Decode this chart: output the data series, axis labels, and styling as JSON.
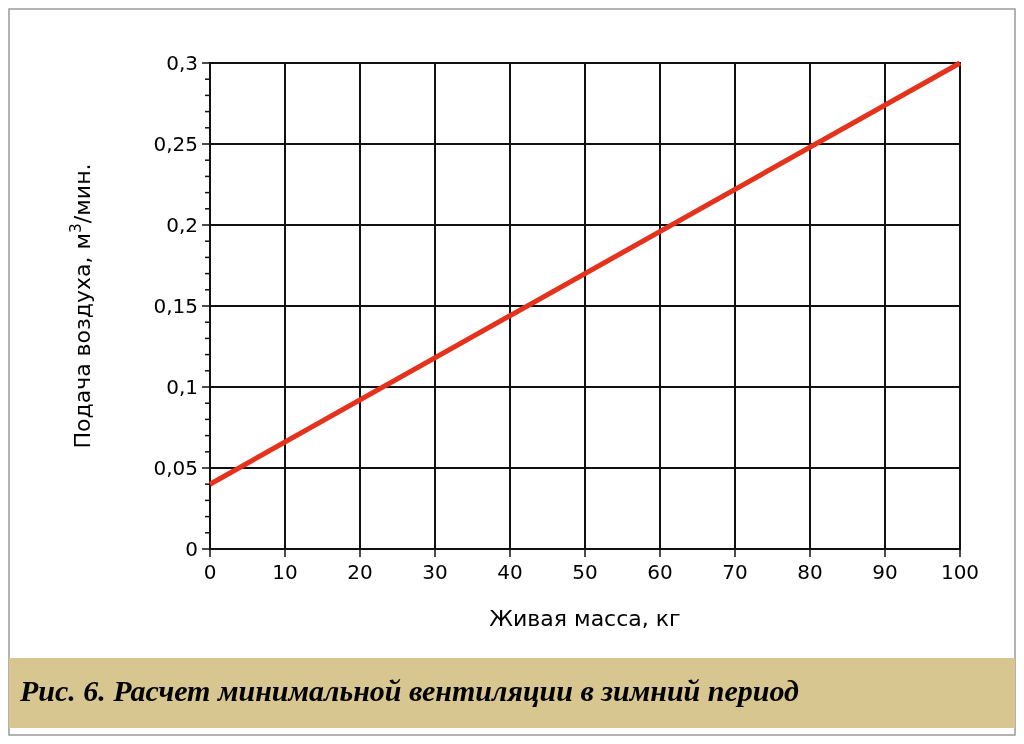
{
  "chart_data": {
    "type": "line",
    "xlabel": "Живая масса, кг",
    "ylabel": "Подача воздуха, м$^{3}$/мин.",
    "annotations": [
      "Рис. 6. Расчет минимальной вентиляции в зимний период"
    ],
    "x": [
      0,
      100
    ],
    "series": [
      {
        "color": "#e4321c",
        "values": [
          0.04,
          0.3
        ]
      }
    ],
    "xlim": [
      0,
      100
    ],
    "xticks": [
      0,
      10,
      20,
      30,
      40,
      50,
      60,
      70,
      80,
      90,
      100
    ],
    "ylim": [
      0,
      0.3
    ],
    "yticks": [
      0,
      {
        "value": 0.01,
        "label": null
      },
      {
        "value": 0.02,
        "label": null
      },
      {
        "value": 0.03,
        "label": null
      },
      {
        "value": 0.04,
        "label": null
      },
      {
        "value": 0.05,
        "label": "0,05"
      },
      {
        "value": 0.06,
        "label": null
      },
      {
        "value": 0.07,
        "label": null
      },
      {
        "value": 0.08,
        "label": null
      },
      {
        "value": 0.09,
        "label": null
      },
      {
        "value": 0.1,
        "label": "0,1"
      },
      {
        "value": 0.11,
        "label": null
      },
      {
        "value": 0.12,
        "label": null
      },
      {
        "value": 0.13,
        "label": null
      },
      {
        "value": 0.14,
        "label": null
      },
      {
        "value": 0.15,
        "label": "0,15"
      },
      {
        "value": 0.16,
        "label": null
      },
      {
        "value": 0.17,
        "label": null
      },
      {
        "value": 0.18,
        "label": null
      },
      {
        "value": 0.19,
        "label": null
      },
      {
        "value": 0.2,
        "label": "0,2"
      },
      {
        "value": 0.21,
        "label": null
      },
      {
        "value": 0.22,
        "label": null
      },
      {
        "value": 0.23,
        "label": null
      },
      {
        "value": 0.24,
        "label": null
      },
      {
        "value": 0.25,
        "label": "0,25"
      },
      {
        "value": 0.26,
        "label": null
      },
      {
        "value": 0.27,
        "label": null
      },
      {
        "value": 0.28,
        "label": null
      },
      {
        "value": 0.29,
        "label": null
      },
      {
        "value": 0.3,
        "label": "0,3"
      }
    ],
    "grid": true,
    "line_style": "solid"
  }
}
